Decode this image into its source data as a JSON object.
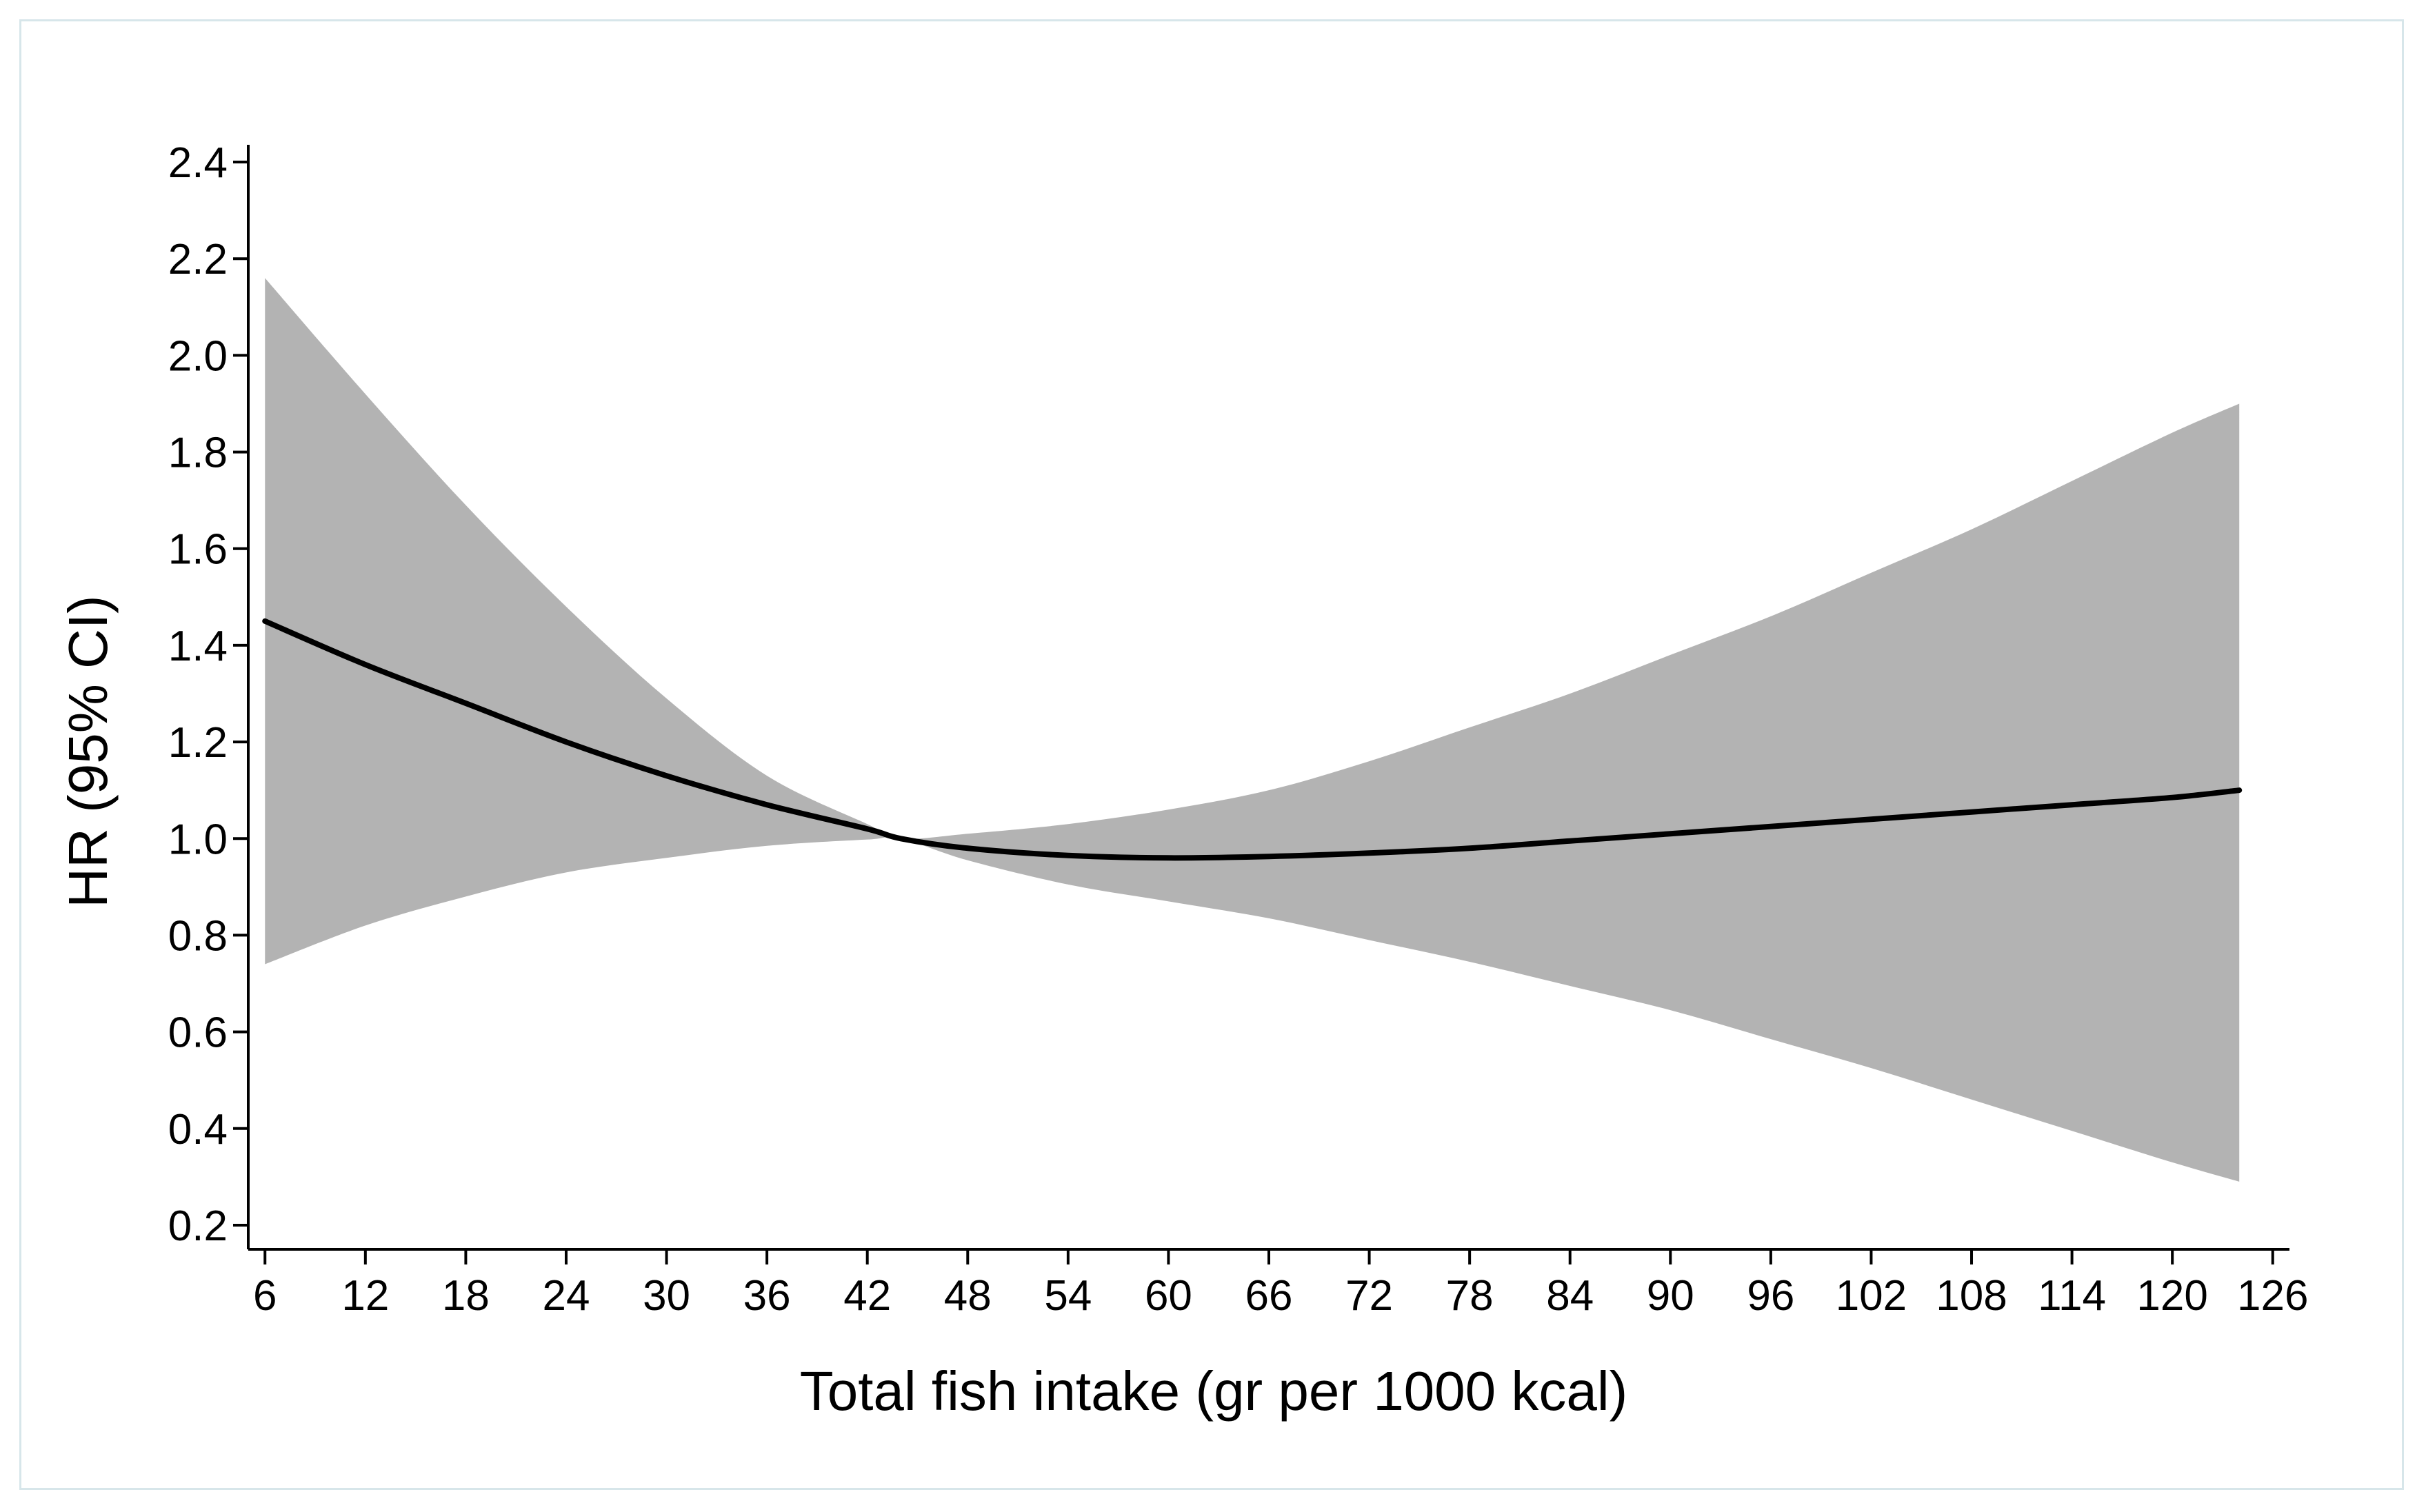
{
  "chart_data": {
    "type": "line",
    "title": "",
    "xlabel": "Total fish intake (gr per 1000 kcal)",
    "ylabel": "HR (95% CI)",
    "xlim": [
      5,
      127
    ],
    "ylim": [
      0.15,
      2.45
    ],
    "x_ticks": [
      6,
      12,
      18,
      24,
      30,
      36,
      42,
      48,
      54,
      60,
      66,
      72,
      78,
      84,
      90,
      96,
      102,
      108,
      114,
      120,
      126
    ],
    "y_ticks": [
      0.2,
      0.4,
      0.6,
      0.8,
      1.0,
      1.2,
      1.4,
      1.6,
      1.8,
      2.0,
      2.2,
      2.4
    ],
    "y_tick_labels": [
      "0.2",
      "0.4",
      "0.6",
      "0.8",
      "1.0",
      "1.2",
      "1.4",
      "1.6",
      "1.8",
      "2.0",
      "2.2",
      "2.4"
    ],
    "grid": false,
    "colors": {
      "line": "#000000",
      "band": "#b3b3b3",
      "axis": "#000000"
    },
    "series": [
      {
        "name": "HR",
        "x": [
          6,
          12,
          18,
          24,
          30,
          36,
          42,
          44,
          48,
          54,
          60,
          66,
          72,
          78,
          84,
          90,
          96,
          102,
          108,
          114,
          120,
          124
        ],
        "y": [
          1.45,
          1.36,
          1.28,
          1.2,
          1.13,
          1.07,
          1.02,
          1.0,
          0.98,
          0.965,
          0.96,
          0.963,
          0.97,
          0.98,
          0.995,
          1.01,
          1.025,
          1.04,
          1.055,
          1.07,
          1.085,
          1.1
        ]
      },
      {
        "name": "95% CI upper",
        "x": [
          6,
          12,
          18,
          24,
          30,
          36,
          42,
          44,
          48,
          54,
          60,
          66,
          72,
          78,
          84,
          90,
          96,
          102,
          108,
          114,
          120,
          124
        ],
        "y": [
          2.16,
          1.92,
          1.69,
          1.48,
          1.29,
          1.13,
          1.03,
          1.0,
          1.01,
          1.03,
          1.06,
          1.1,
          1.16,
          1.23,
          1.3,
          1.38,
          1.46,
          1.55,
          1.64,
          1.74,
          1.84,
          1.9
        ]
      },
      {
        "name": "95% CI lower",
        "x": [
          6,
          12,
          18,
          24,
          30,
          36,
          42,
          44,
          48,
          54,
          60,
          66,
          72,
          78,
          84,
          90,
          96,
          102,
          108,
          114,
          120,
          124
        ],
        "y": [
          0.74,
          0.82,
          0.88,
          0.93,
          0.96,
          0.985,
          0.998,
          1.0,
          0.955,
          0.905,
          0.87,
          0.835,
          0.79,
          0.745,
          0.695,
          0.645,
          0.585,
          0.525,
          0.46,
          0.395,
          0.33,
          0.29
        ]
      }
    ]
  }
}
